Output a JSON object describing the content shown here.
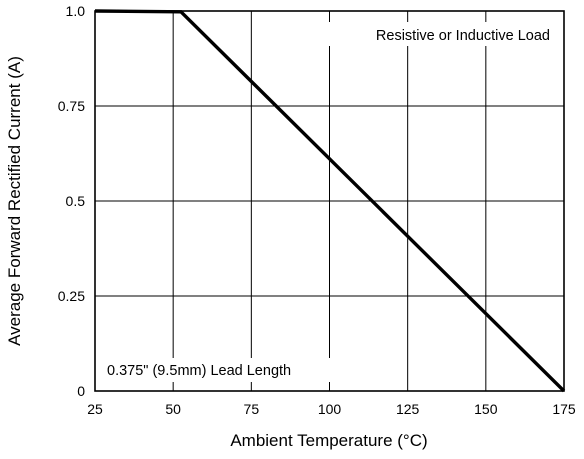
{
  "chart_data": {
    "type": "line",
    "xlabel": "Ambient Temperature (°C)",
    "ylabel": "Average Forward Rectified Current (A)",
    "xlim": [
      25,
      175
    ],
    "ylim": [
      0,
      1.0
    ],
    "x_ticks": [
      25,
      50,
      75,
      100,
      125,
      150,
      175
    ],
    "x_tick_labels": [
      "25",
      "50",
      "75",
      "100",
      "125",
      "150",
      "175"
    ],
    "y_ticks": [
      0,
      0.25,
      0.5,
      0.75,
      1.0
    ],
    "y_tick_labels": [
      "0",
      "0.25",
      "0.5",
      "0.75",
      "1.0"
    ],
    "grid": true,
    "series": [
      {
        "x": [
          25,
          52.5,
          175
        ],
        "y": [
          1.0,
          0.998,
          0.0
        ]
      }
    ],
    "annotations": [
      {
        "text": "Resistive or Inductive Load",
        "position": "top-right"
      },
      {
        "text": "0.375\" (9.5mm) Lead Length",
        "position": "bottom-left"
      }
    ]
  }
}
